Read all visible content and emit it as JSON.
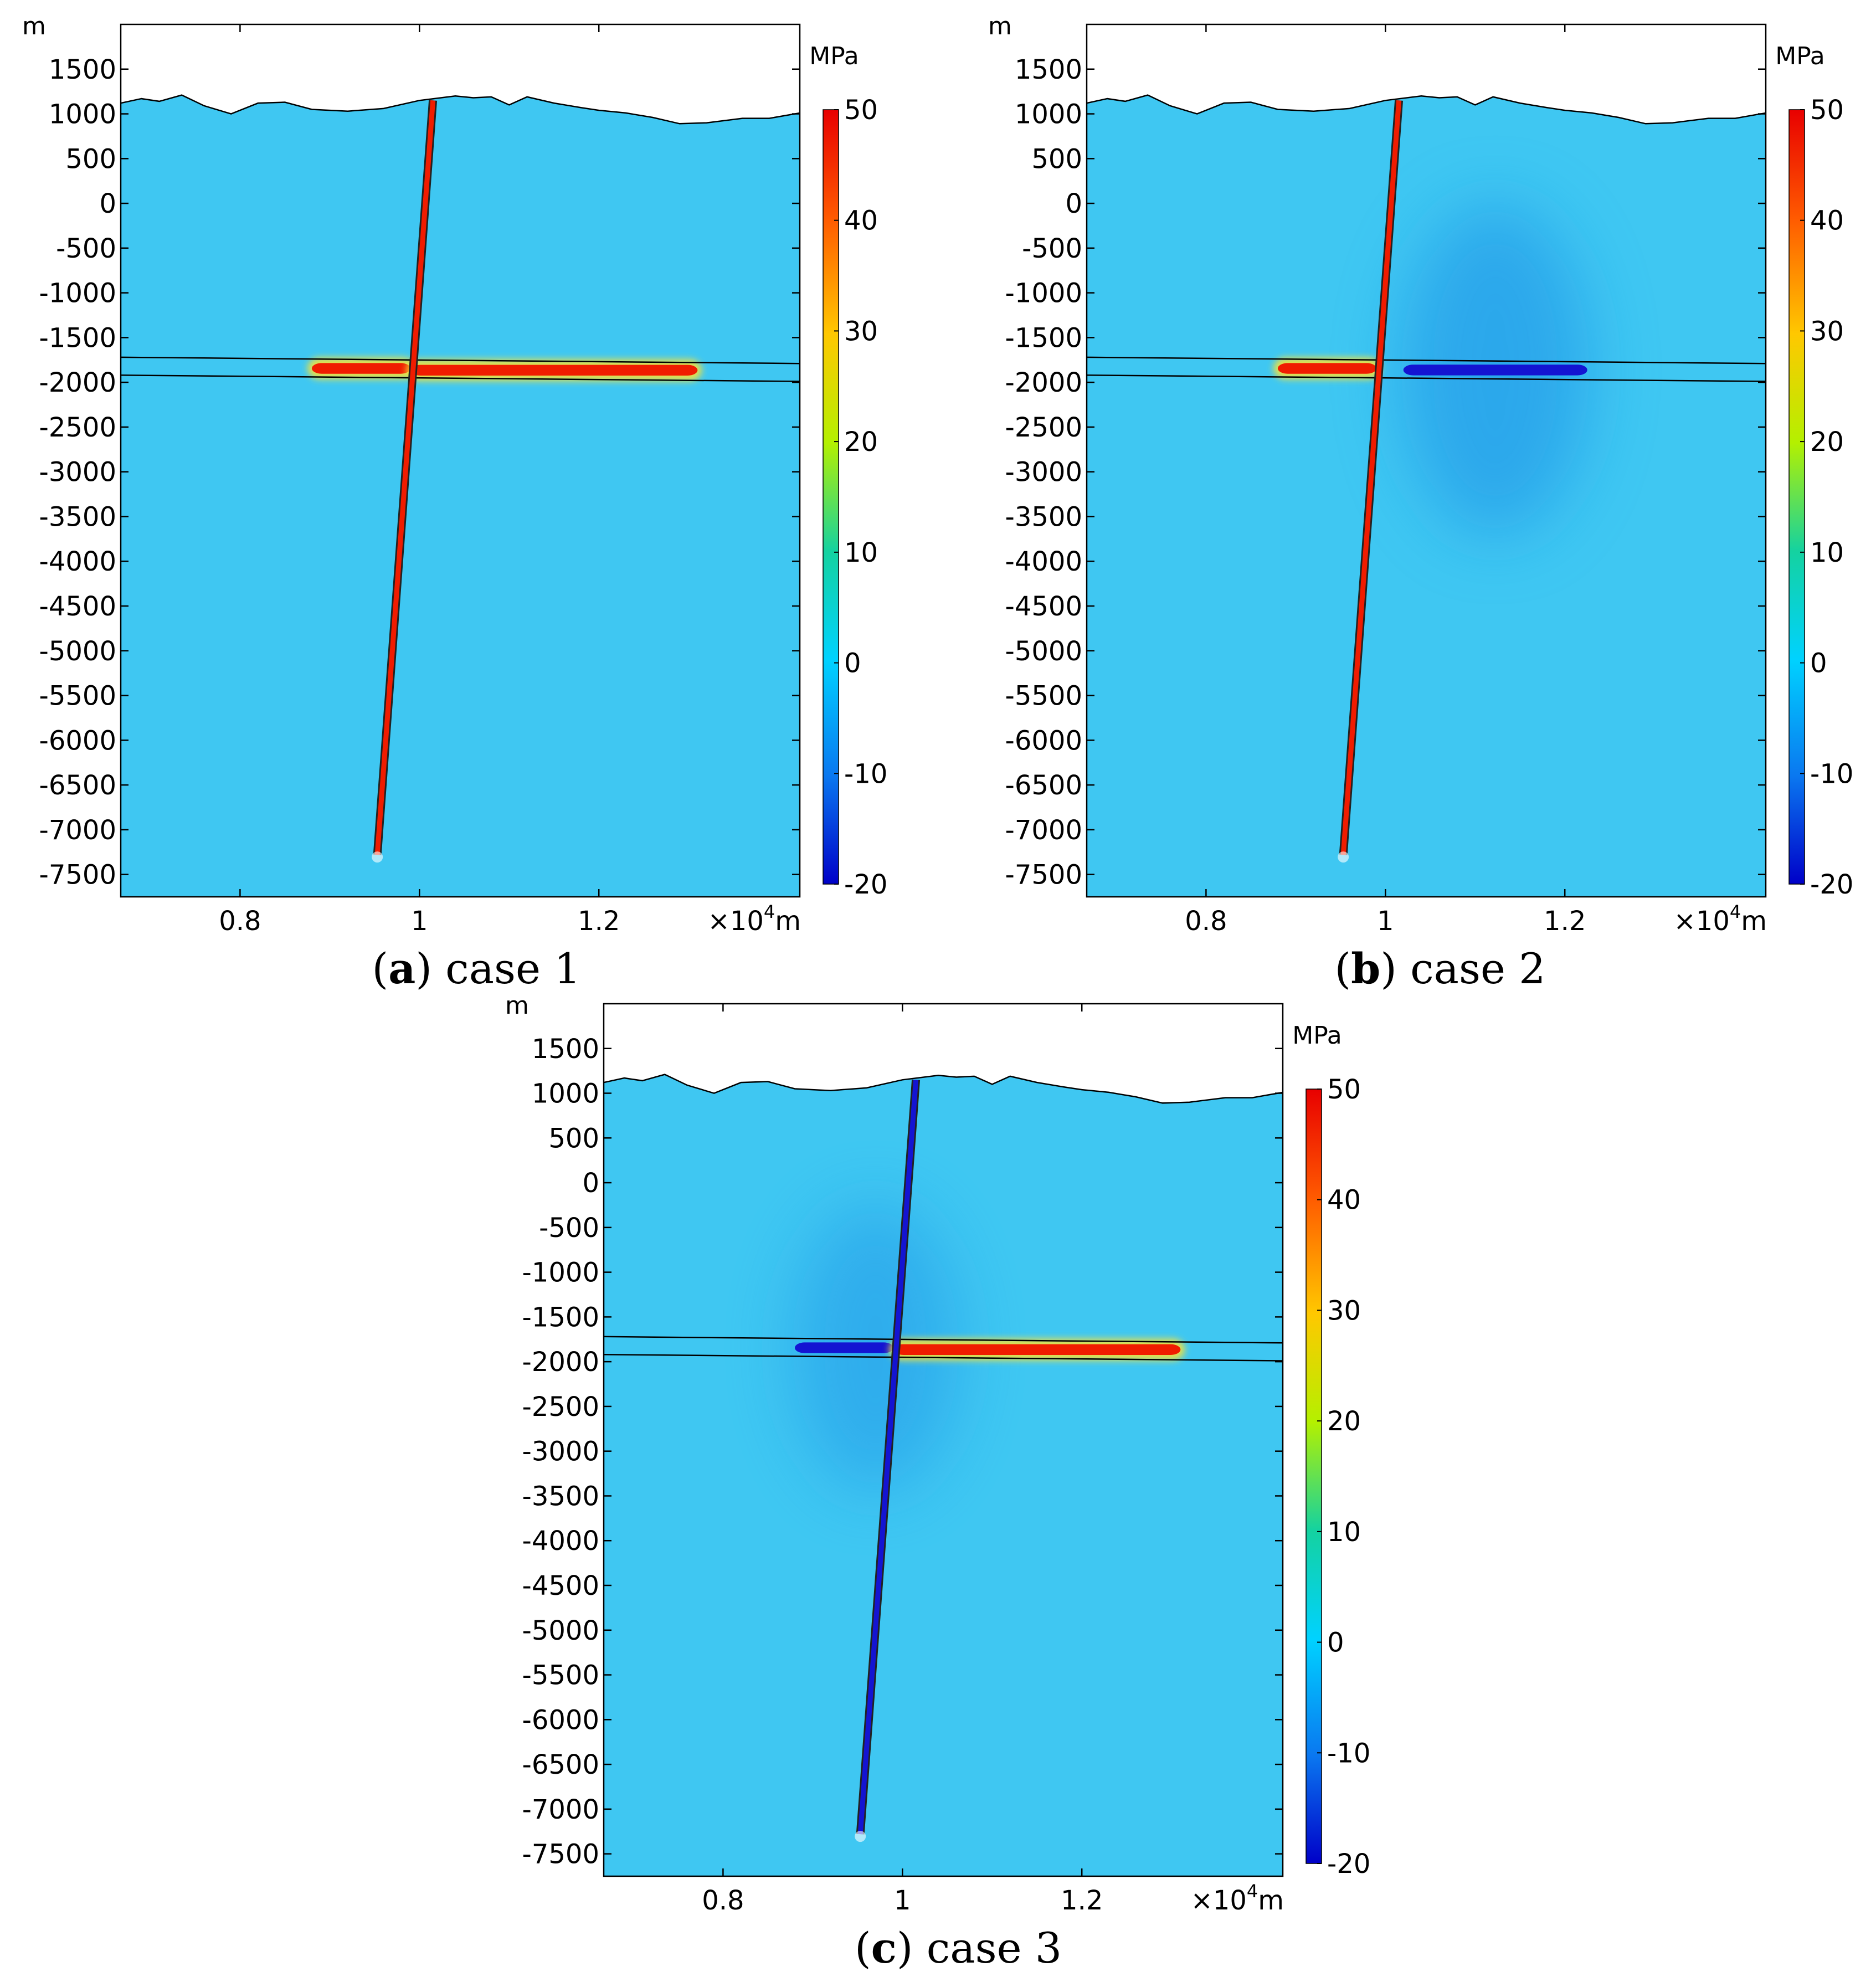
{
  "figure": {
    "panels": [
      {
        "letter": "a",
        "caption": "case 1",
        "unit_label": "m",
        "colorbar_unit": "MPa",
        "x_multiplier": "×10",
        "x_exponent": "4",
        "x_unit": "m",
        "states": {
          "left_reservoir": "tension",
          "right_reservoir": "tension",
          "fault": "tension"
        }
      },
      {
        "letter": "b",
        "caption": "case 2",
        "unit_label": "m",
        "colorbar_unit": "MPa",
        "x_multiplier": "×10",
        "x_exponent": "4",
        "x_unit": "m",
        "states": {
          "left_reservoir": "tension",
          "right_reservoir": "compression",
          "fault": "tension"
        }
      },
      {
        "letter": "c",
        "caption": "case 3",
        "unit_label": "m",
        "colorbar_unit": "MPa",
        "x_multiplier": "×10",
        "x_exponent": "4",
        "x_unit": "m",
        "states": {
          "left_reservoir": "compression",
          "right_reservoir": "tension",
          "fault": "compression"
        }
      }
    ]
  },
  "chart_data": {
    "type": "heatmap",
    "y_ticks": [
      "1500",
      "1000",
      "500",
      "0",
      "-500",
      "-1000",
      "-1500",
      "-2000",
      "-2500",
      "-3000",
      "-3500",
      "-4000",
      "-4500",
      "-5000",
      "-5500",
      "-6000",
      "-6500",
      "-7000",
      "-7500"
    ],
    "y_tick_values": [
      1500,
      1000,
      500,
      0,
      -500,
      -1000,
      -1500,
      -2000,
      -2500,
      -3000,
      -3500,
      -4000,
      -4500,
      -5000,
      -5500,
      -6000,
      -6500,
      -7000,
      -7500
    ],
    "x_ticks": [
      "0.8",
      "1",
      "1.2"
    ],
    "x_tick_values": [
      0.8,
      1.0,
      1.2
    ],
    "xlim": [
      0.667,
      1.424
    ],
    "ylim": [
      -7750,
      2000
    ],
    "colorbar": {
      "unit": "MPa",
      "ticks": [
        "50",
        "40",
        "30",
        "20",
        "10",
        "0",
        "-10",
        "-20"
      ],
      "tick_values": [
        50,
        40,
        30,
        20,
        10,
        0,
        -10,
        -20
      ],
      "range": [
        -20,
        50
      ]
    },
    "colors": {
      "background": "#3fc7f2",
      "tension": "#f01c00",
      "compression": "#1414d2",
      "halo": "#f5e23a"
    },
    "surface_profile": [
      [
        0.667,
        1120
      ],
      [
        0.69,
        1170
      ],
      [
        0.71,
        1140
      ],
      [
        0.735,
        1210
      ],
      [
        0.76,
        1090
      ],
      [
        0.79,
        1000
      ],
      [
        0.82,
        1120
      ],
      [
        0.85,
        1130
      ],
      [
        0.88,
        1050
      ],
      [
        0.92,
        1030
      ],
      [
        0.96,
        1060
      ],
      [
        1.0,
        1150
      ],
      [
        1.04,
        1200
      ],
      [
        1.06,
        1180
      ],
      [
        1.08,
        1190
      ],
      [
        1.1,
        1100
      ],
      [
        1.12,
        1190
      ],
      [
        1.15,
        1120
      ],
      [
        1.18,
        1070
      ],
      [
        1.2,
        1040
      ],
      [
        1.23,
        1010
      ],
      [
        1.26,
        960
      ],
      [
        1.29,
        890
      ],
      [
        1.32,
        900
      ],
      [
        1.36,
        950
      ],
      [
        1.39,
        950
      ],
      [
        1.424,
        1010
      ]
    ],
    "fault": {
      "top": [
        1.015,
        1150
      ],
      "bottom": [
        0.953,
        -7280
      ]
    },
    "reservoir": {
      "top_line": [
        [
          0.667,
          -1720
        ],
        [
          1.424,
          -1790
        ]
      ],
      "bottom_line": [
        [
          0.667,
          -1920
        ],
        [
          1.424,
          -1990
        ]
      ],
      "left_segment": [
        0.88,
        0.99
      ],
      "right_segment_tension": [
        0.99,
        1.31
      ],
      "right_segment_compression": [
        1.02,
        1.225
      ]
    }
  }
}
